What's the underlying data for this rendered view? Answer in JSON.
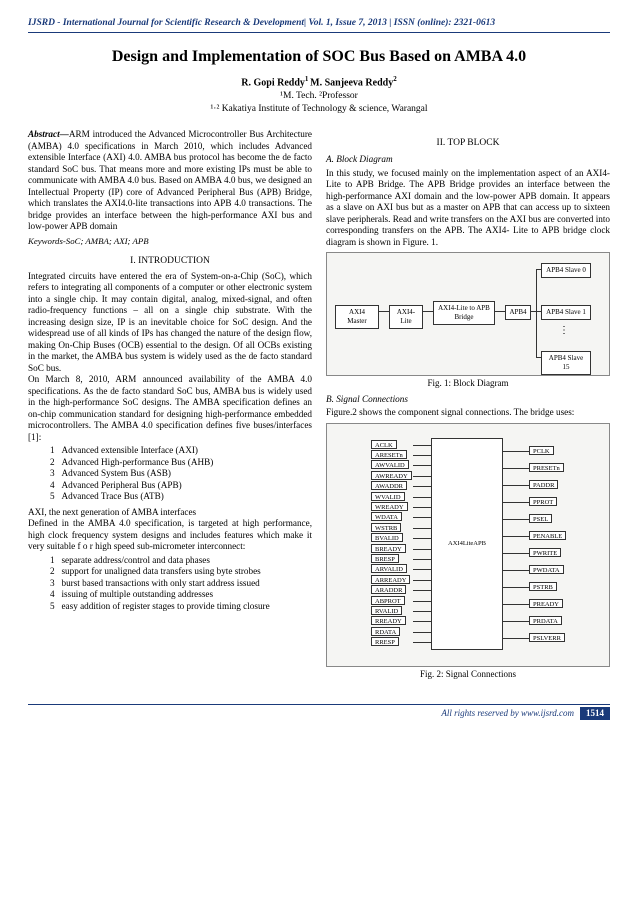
{
  "journal_header": "IJSRD - International Journal for Scientific Research & Development| Vol. 1, Issue 7, 2013 | ISSN (online): 2321-0613",
  "title": "Design and Implementation of SOC Bus Based on AMBA 4.0",
  "authors_html": "R. Gopi Reddy¹ M. Sanjeeva Reddy²",
  "authors": {
    "a1": "R. Gopi Reddy",
    "a2": "M. Sanjeeva Reddy"
  },
  "affil1": "¹M. Tech. ²Professor",
  "affil2": "¹·² Kakatiya Institute of Technology & science, Warangal",
  "abstract_label": "Abstract—",
  "abstract": "ARM introduced the Advanced Microcontroller Bus Architecture (AMBA) 4.0 specifications in March 2010, which includes Advanced extensible Interface (AXI) 4.0.  AMBA bus protocol has become the de facto standard SoC bus. That means more and more existing IPs must be able to communicate with AMBA 4.0 bus. Based on AMBA 4.0 bus, we designed an Intellectual Property (IP) core of Advanced Peripheral Bus (APB) Bridge, which translates the AXI4.0-lite transactions into APB 4.0 transactions. The bridge provides an interface between the high-performance AXI bus and low-power APB domain",
  "keywords": "Keywords-SoC; AMBA; AXI; APB",
  "sec1_heading": "I.  INTRODUCTION",
  "intro_p1": "Integrated circuits have entered the era of System-on-a-Chip (SoC), which refers to integrating all components of a computer or other electronic system into a single chip. It may contain digital, analog, mixed-signal, and often radio-frequency functions – all on a single chip substrate. With the increasing design size, IP is an inevitable choice for SoC design. And the widespread use of all kinds of IPs has changed the nature of the design flow, making On-Chip Buses (OCB) essential to the design. Of all OCBs existing in the market, the AMBA bus system is widely used as the de facto standard SoC bus.",
  "intro_p2": "On March 8, 2010, ARM announced availability of the AMBA 4.0 specifications. As the de facto standard SoC bus, AMBA bus is widely used in the high-performance SoC designs. The AMBA specification defines an on-chip communication standard for designing high-performance embedded microcontrollers. The AMBA 4.0 specification defines five buses/interfaces [1]:",
  "bus_list": [
    "Advanced extensible Interface (AXI)",
    "Advanced High-performance Bus (AHB)",
    "Advanced System Bus (ASB)",
    "Advanced Peripheral Bus (APB)",
    "Advanced Trace Bus (ATB)"
  ],
  "intro_p3": "AXI, the next generation of AMBA interfaces",
  "intro_p4": "Defined in the AMBA 4.0 specification, is targeted at high performance, high clock frequency system designs and includes features which make  it  very suitable f o r  high speed  sub-micrometer interconnect:",
  "feat_list": [
    "separate address/control and data phases",
    "support for unaligned data transfers using byte strobes",
    "burst based transactions with only start address issued",
    "issuing of multiple outstanding addresses",
    "easy addition of register stages to provide timing closure"
  ],
  "sec2_heading": "II.  TOP BLOCK",
  "sub2a": "A.  Block Diagram",
  "p2a": "In this study, we focused mainly on the implementation aspect of an AXI4-Lite to APB Bridge. The APB Bridge provides an interface between the high-performance AXI domain and the low-power APB domain. It appears as a slave on AXI bus but as a master on APB that can access up to sixteen slave peripherals. Read and write transfers on the AXI bus are converted into corresponding transfers on the APB. The AXI4- Lite to APB bridge clock diagram is shown in Figure. 1.",
  "fig1": {
    "boxes": {
      "master": "AXI4 Master",
      "axi4lite": "AXI4-Lite",
      "bridge": "AXI4-Lite to APB Bridge",
      "apb4": "APB4",
      "slave0": "APB4 Slave 0",
      "slave1": "APB4 Slave 1",
      "slave15": "APB4 Slave 15"
    },
    "caption": "Fig. 1: Block Diagram"
  },
  "sub2b": "B.  Signal Connections",
  "p2b": "Figure.2 shows the component signal connections. The bridge uses:",
  "fig2": {
    "chip_label": "AXI4LiteAPB",
    "left": [
      "ACLK",
      "ARESETn",
      "AWVALID",
      "AWREADY",
      "AWADDR",
      "WVALID",
      "WREADY",
      "WDATA",
      "WSTRB",
      "BVALID",
      "BREADY",
      "BRESP",
      "ARVALID",
      "ARREADY",
      "ARADDR",
      "ABPROT",
      "RVALID",
      "RREADY",
      "RDATA",
      "RRESP"
    ],
    "right": [
      "PCLK",
      "PRESETn",
      "PADDR",
      "PPROT",
      "PSEL",
      "PENABLE",
      "PWRITE",
      "PWDATA",
      "PSTRB",
      "PREADY",
      "PRDATA",
      "PSLVERR"
    ],
    "caption": "Fig. 2: Signal Connections"
  },
  "footer_text": "All rights reserved by www.ijsrd.com",
  "page_number": "1514"
}
